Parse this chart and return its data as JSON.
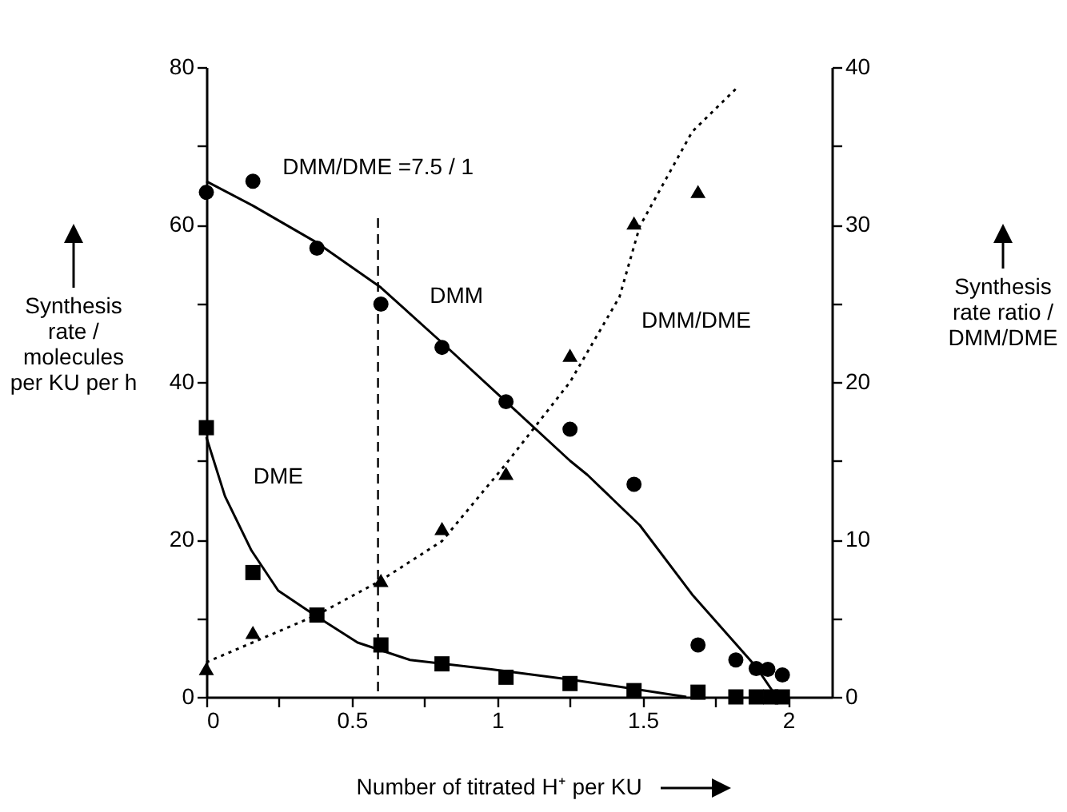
{
  "chart_data": {
    "type": "scatter",
    "xlabel": "Number of titrated H⁺ per KU",
    "ylabel": "Synthesis rate / molecules per KU per h",
    "y2label": "Synthesis rate ratio / DMM/DME",
    "xlim": [
      0,
      2.15
    ],
    "ylim": [
      0,
      80
    ],
    "y2lim": [
      0,
      40
    ],
    "xticks": [
      0,
      {
        "value": 0.25,
        "label": null
      },
      0.5,
      {
        "value": 0.75,
        "label": null
      },
      1,
      {
        "value": 1.25,
        "label": null
      },
      1.5,
      {
        "value": 1.75,
        "label": null
      },
      2
    ],
    "yticks": [
      0,
      {
        "value": 10,
        "label": null
      },
      20,
      {
        "value": 30,
        "label": null
      },
      40,
      {
        "value": 50,
        "label": null
      },
      60,
      {
        "value": 70,
        "label": null
      },
      80
    ],
    "y2ticks": [
      0,
      {
        "value": 5,
        "label": null
      },
      10,
      {
        "value": 15,
        "label": null
      },
      20,
      {
        "value": 25,
        "label": null
      },
      30,
      {
        "value": 35,
        "label": null
      },
      40
    ],
    "grid": false,
    "series": [
      {
        "marker": "circle",
        "color": "#000000",
        "x": [
          0,
          0.16,
          0.38,
          0.6,
          0.81,
          1.03,
          1.25,
          1.47,
          1.69,
          1.82,
          1.89,
          1.93,
          1.98
        ],
        "values": [
          64.1,
          65.5,
          57.0,
          49.9,
          44.4,
          37.5,
          34.0,
          27.0,
          6.6,
          4.7,
          3.6,
          3.5,
          2.8
        ]
      },
      {
        "marker": "square",
        "color": "#000000",
        "x": [
          0,
          0.16,
          0.38,
          0.6,
          0.81,
          1.03,
          1.25,
          1.47,
          1.69,
          1.82,
          1.89,
          1.94,
          1.98
        ],
        "values": [
          34.2,
          15.8,
          10.4,
          6.6,
          4.2,
          2.5,
          1.7,
          0.8,
          0.6,
          0,
          0,
          0,
          0
        ]
      },
      {
        "marker": "triangle",
        "color": "#000000",
        "axis": "y2",
        "x": [
          0,
          0.16,
          0.38,
          0.6,
          0.81,
          1.03,
          1.25,
          1.47,
          1.69
        ],
        "values": [
          1.8,
          4.1,
          null,
          7.4,
          10.7,
          14.2,
          21.7,
          30.1,
          32.1
        ]
      },
      {
        "type": "line",
        "name": "DMM",
        "marker": "none",
        "line_style": "solid",
        "color": "#000000",
        "x": [
          0,
          0.16,
          0.38,
          0.6,
          0.81,
          1.03,
          1.25,
          1.31,
          1.49,
          1.67,
          1.89,
          1.96
        ],
        "values": [
          65.5,
          62.4,
          57.7,
          52,
          45,
          37.5,
          30,
          28.2,
          21.8,
          13.0,
          3.8,
          0
        ]
      },
      {
        "type": "line",
        "name": "DME",
        "marker": "none",
        "line_style": "solid",
        "color": "#000000",
        "x": [
          0,
          0.064,
          0.155,
          0.247,
          0.38,
          0.52,
          0.7,
          0.98,
          1.25,
          1.42,
          1.65
        ],
        "values": [
          33,
          25.5,
          18.6,
          13.5,
          10.2,
          6.9,
          4.7,
          3.5,
          2.2,
          1.3,
          0
        ]
      },
      {
        "type": "line",
        "name": "DMM/DME",
        "marker": "none",
        "line_style": "dotted",
        "color": "#000000",
        "axis": "y2",
        "x": [
          0,
          0.38,
          0.6,
          0.81,
          1.03,
          1.25,
          1.42,
          1.49,
          1.67,
          1.83
        ],
        "values": [
          2.2,
          5.2,
          7.4,
          9.9,
          14.8,
          20.0,
          25.4,
          29.9,
          35.9,
          38.8
        ]
      }
    ],
    "ref_lines": [
      {
        "axis": "x",
        "value": 0.59,
        "label": "DMM/DME =7.5 / 1",
        "line_style": "dashed",
        "color": "#000000"
      }
    ]
  }
}
